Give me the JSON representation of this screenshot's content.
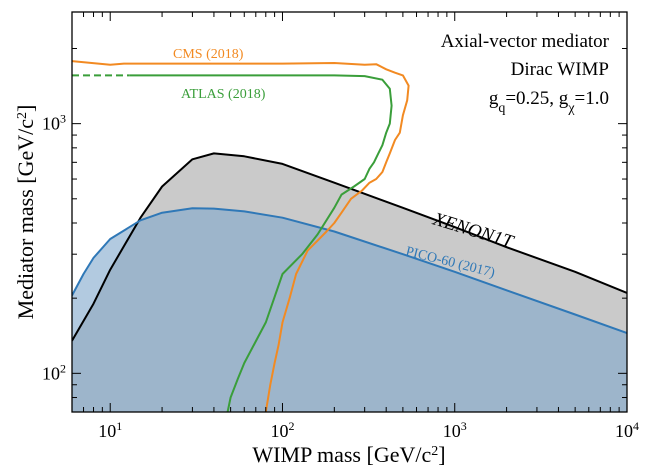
{
  "chart_data": {
    "type": "line",
    "xlabel": "WIMP mass [GeV/c²]",
    "ylabel": "Mediator mass [GeV/c²]",
    "xscale": "log",
    "yscale": "log",
    "xlim": [
      6,
      10000
    ],
    "ylim": [
      70,
      2800
    ],
    "x_ticks": [
      {
        "value": 10,
        "base": "10",
        "exp": "1"
      },
      {
        "value": 100,
        "base": "10",
        "exp": "2"
      },
      {
        "value": 1000,
        "base": "10",
        "exp": "3"
      },
      {
        "value": 10000,
        "base": "10",
        "exp": "4"
      }
    ],
    "y_ticks": [
      {
        "value": 100,
        "base": "10",
        "exp": "2"
      },
      {
        "value": 1000,
        "base": "10",
        "exp": "3"
      }
    ],
    "annotation": {
      "line1": "Axial-vector mediator",
      "line2": "Dirac WIMP",
      "line3": "g_q=0.25, g_χ=1.0"
    },
    "series": [
      {
        "name": "XENON1T",
        "color": "#000000",
        "fill": "#b8b8b8",
        "x": [
          6,
          8,
          10,
          15,
          20,
          30,
          40,
          60,
          100,
          200,
          500,
          1000,
          2000,
          5000,
          10000
        ],
        "y": [
          135,
          190,
          260,
          420,
          560,
          720,
          760,
          740,
          690,
          580,
          460,
          385,
          320,
          255,
          210
        ]
      },
      {
        "name": "PICO-60 (2017)",
        "color": "#2f78b7",
        "fill": "#7fa6cc",
        "x": [
          6,
          7,
          8,
          10,
          15,
          20,
          30,
          40,
          60,
          100,
          200,
          500,
          1000,
          2000,
          5000,
          10000
        ],
        "y": [
          205,
          250,
          290,
          345,
          410,
          440,
          458,
          457,
          445,
          420,
          370,
          300,
          255,
          215,
          172,
          145
        ]
      },
      {
        "name": "CMS (2018)",
        "color": "#f28a22",
        "x": [
          6,
          10,
          12,
          20,
          50,
          100,
          200,
          300,
          350,
          400,
          450,
          500,
          540,
          530,
          500,
          480,
          450,
          420,
          400,
          380,
          350,
          320,
          290,
          250,
          220,
          200,
          180,
          160,
          140,
          120,
          110,
          100,
          95,
          90,
          85,
          80
        ],
        "y": [
          1780,
          1720,
          1740,
          1740,
          1740,
          1740,
          1750,
          1720,
          1730,
          1650,
          1600,
          1560,
          1420,
          1240,
          1080,
          920,
          860,
          760,
          700,
          640,
          600,
          580,
          540,
          500,
          440,
          400,
          370,
          340,
          310,
          250,
          200,
          160,
          130,
          110,
          90,
          70
        ]
      },
      {
        "name": "ATLAS (2018)",
        "color": "#3a9e3a",
        "dashed_below": 13,
        "x": [
          6,
          10,
          13,
          20,
          50,
          100,
          200,
          300,
          380,
          420,
          430,
          420,
          400,
          380,
          360,
          340,
          320,
          300,
          260,
          220,
          200,
          160,
          130,
          100,
          80,
          60,
          55,
          50,
          48
        ],
        "y": [
          1560,
          1560,
          1560,
          1560,
          1560,
          1560,
          1560,
          1550,
          1500,
          1380,
          1180,
          1000,
          920,
          820,
          760,
          700,
          660,
          600,
          560,
          520,
          460,
          360,
          300,
          250,
          160,
          110,
          95,
          80,
          70
        ]
      }
    ],
    "labels": {
      "xenon": "XENON1T",
      "pico": "PICO-60 (2017)",
      "cms": "CMS (2018)",
      "atlas": "ATLAS (2018)"
    }
  }
}
